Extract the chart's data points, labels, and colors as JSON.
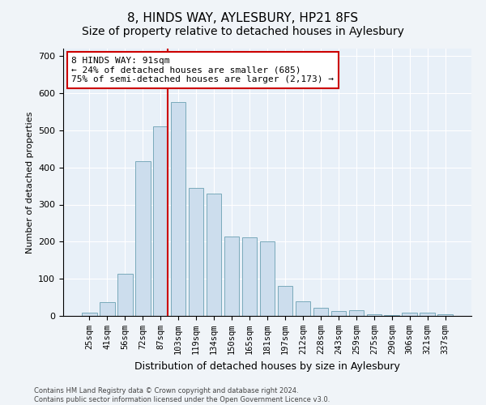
{
  "title": "8, HINDS WAY, AYLESBURY, HP21 8FS",
  "subtitle": "Size of property relative to detached houses in Aylesbury",
  "xlabel": "Distribution of detached houses by size in Aylesbury",
  "ylabel": "Number of detached properties",
  "categories": [
    "25sqm",
    "41sqm",
    "56sqm",
    "72sqm",
    "87sqm",
    "103sqm",
    "119sqm",
    "134sqm",
    "150sqm",
    "165sqm",
    "181sqm",
    "197sqm",
    "212sqm",
    "228sqm",
    "243sqm",
    "259sqm",
    "275sqm",
    "290sqm",
    "306sqm",
    "321sqm",
    "337sqm"
  ],
  "bar_values": [
    8,
    38,
    113,
    416,
    510,
    575,
    345,
    330,
    213,
    212,
    200,
    80,
    40,
    22,
    13,
    15,
    5,
    2,
    8,
    8,
    5
  ],
  "bar_color": "#ccdded",
  "bar_edge_color": "#7aaabb",
  "property_line_x": 4.42,
  "red_line_color": "#cc0000",
  "annotation_line1": "8 HINDS WAY: 91sqm",
  "annotation_line2": "← 24% of detached houses are smaller (685)",
  "annotation_line3": "75% of semi-detached houses are larger (2,173) →",
  "annotation_box_color": "#ffffff",
  "annotation_box_edge": "#cc0000",
  "ylim": [
    0,
    720
  ],
  "yticks": [
    0,
    100,
    200,
    300,
    400,
    500,
    600,
    700
  ],
  "footer_line1": "Contains HM Land Registry data © Crown copyright and database right 2024.",
  "footer_line2": "Contains public sector information licensed under the Open Government Licence v3.0.",
  "bg_color": "#f0f4f8",
  "plot_bg_color": "#e8f0f8",
  "title_fontsize": 11,
  "subtitle_fontsize": 10,
  "tick_fontsize": 7.5,
  "ylabel_fontsize": 8,
  "xlabel_fontsize": 9
}
